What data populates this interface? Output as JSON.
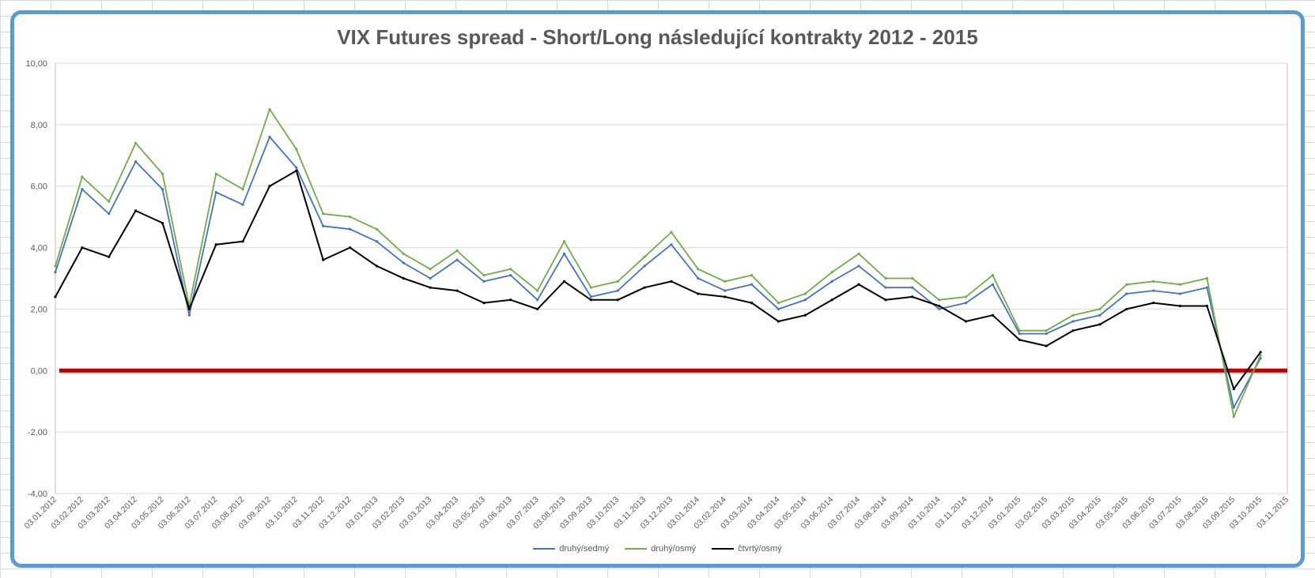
{
  "chart_data": {
    "type": "line",
    "title": "VIX Futures spread - Short/Long následující kontrakty 2012 - 2015",
    "xlabel": "",
    "ylabel": "",
    "ylim": [
      -4,
      10
    ],
    "y_ticks": [
      "10,00",
      "8,00",
      "6,00",
      "4,00",
      "2,00",
      "0,00",
      "-2,00",
      "-4,00"
    ],
    "y_tick_values": [
      10,
      8,
      6,
      4,
      2,
      0,
      -2,
      -4
    ],
    "x_ticks": [
      "03.01.2012",
      "03.02.2012",
      "03.03.2012",
      "03.04.2012",
      "03.05.2012",
      "03.06.2012",
      "03.07.2012",
      "03.08.2012",
      "03.09.2012",
      "03.10.2012",
      "03.11.2012",
      "03.12.2012",
      "03.01.2013",
      "03.02.2013",
      "03.03.2013",
      "03.04.2013",
      "03.05.2013",
      "03.06.2013",
      "03.07.2013",
      "03.08.2013",
      "03.09.2013",
      "03.10.2013",
      "03.11.2013",
      "03.12.2013",
      "03.01.2014",
      "03.02.2014",
      "03.03.2014",
      "03.04.2014",
      "03.05.2014",
      "03.06.2014",
      "03.07.2014",
      "03.08.2014",
      "03.09.2014",
      "03.10.2014",
      "03.11.2014",
      "03.12.2014",
      "03.01.2015",
      "03.02.2015",
      "03.03.2015",
      "03.04.2015",
      "03.05.2015",
      "03.06.2015",
      "03.07.2015",
      "03.08.2015",
      "03.09.2015",
      "03.10.2015",
      "03.11.2015"
    ],
    "grid": true,
    "legend_position": "bottom",
    "x": [
      "03.01.2012",
      "03.02.2012",
      "03.03.2012",
      "03.04.2012",
      "03.05.2012",
      "03.06.2012",
      "03.07.2012",
      "03.08.2012",
      "03.09.2012",
      "03.10.2012",
      "03.11.2012",
      "03.12.2012",
      "03.01.2013",
      "03.02.2013",
      "03.03.2013",
      "03.04.2013",
      "03.05.2013",
      "03.06.2013",
      "03.07.2013",
      "03.08.2013",
      "03.09.2013",
      "03.10.2013",
      "03.11.2013",
      "03.12.2013",
      "03.01.2014",
      "03.02.2014",
      "03.03.2014",
      "03.04.2014",
      "03.05.2014",
      "03.06.2014",
      "03.07.2014",
      "03.08.2014",
      "03.09.2014",
      "03.10.2014",
      "03.11.2014",
      "03.12.2014",
      "03.01.2015",
      "03.02.2015",
      "03.03.2015",
      "03.04.2015",
      "03.05.2015",
      "03.06.2015",
      "03.07.2015",
      "03.08.2015",
      "03.09.2015",
      "03.10.2015"
    ],
    "series": [
      {
        "name": "druhý/sedmý",
        "color": "#4472c4",
        "values": [
          3.2,
          5.9,
          5.1,
          6.8,
          5.9,
          1.8,
          5.8,
          5.4,
          7.6,
          6.6,
          4.7,
          4.6,
          4.2,
          3.5,
          3.0,
          3.6,
          2.9,
          3.1,
          2.3,
          3.8,
          2.4,
          2.6,
          3.4,
          4.1,
          3.0,
          2.6,
          2.8,
          2.0,
          2.3,
          2.9,
          3.4,
          2.7,
          2.7,
          2.0,
          2.2,
          2.8,
          1.2,
          1.2,
          1.6,
          1.8,
          2.5,
          2.6,
          2.5,
          2.7,
          -1.2,
          0.4
        ]
      },
      {
        "name": "druhý/osmý",
        "color": "#70ad47",
        "values": [
          3.4,
          6.3,
          5.5,
          7.4,
          6.4,
          2.1,
          6.4,
          5.9,
          8.5,
          7.2,
          5.1,
          5.0,
          4.6,
          3.8,
          3.3,
          3.9,
          3.1,
          3.3,
          2.6,
          4.2,
          2.7,
          2.9,
          3.7,
          4.5,
          3.3,
          2.9,
          3.1,
          2.2,
          2.5,
          3.2,
          3.8,
          3.0,
          3.0,
          2.3,
          2.4,
          3.1,
          1.3,
          1.3,
          1.8,
          2.0,
          2.8,
          2.9,
          2.8,
          3.0,
          -1.5,
          0.5
        ]
      },
      {
        "name": "čtvrtý/osmý",
        "color": "#000000",
        "values": [
          2.4,
          4.0,
          3.7,
          5.2,
          4.8,
          2.0,
          4.1,
          4.2,
          6.0,
          6.5,
          3.6,
          4.0,
          3.4,
          3.0,
          2.7,
          2.6,
          2.2,
          2.3,
          2.0,
          2.9,
          2.3,
          2.3,
          2.7,
          2.9,
          2.5,
          2.4,
          2.2,
          1.6,
          1.8,
          2.3,
          2.8,
          2.3,
          2.4,
          2.1,
          1.6,
          1.8,
          1.0,
          0.8,
          1.3,
          1.5,
          2.0,
          2.2,
          2.1,
          2.1,
          -0.6,
          0.6
        ]
      }
    ],
    "reference_line": {
      "value": 0,
      "color": "#c00000"
    }
  }
}
